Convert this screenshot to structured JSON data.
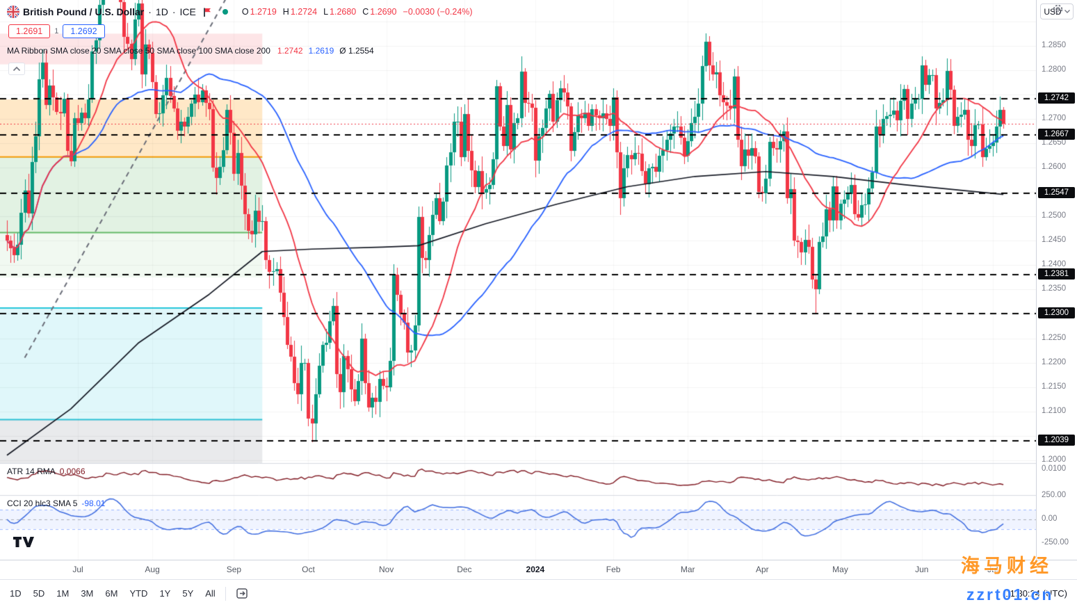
{
  "header": {
    "symbol": "British Pound / U.S. Dollar",
    "sep": "·",
    "interval": "1D",
    "exchange": "ICE",
    "status_color": "#089981",
    "ohlc": {
      "o_label": "O",
      "o": "1.2719",
      "h_label": "H",
      "h": "1.2724",
      "l_label": "L",
      "l": "1.2680",
      "c_label": "C",
      "c": "1.2690",
      "change": "−0.0030 (−0.24%)"
    },
    "bid": "1.2691",
    "spread": "1",
    "ask": "1.2692",
    "ma_ribbon": {
      "title": "MA Ribbon SMA close 20 SMA close 50 SMA close 100 SMA close 200",
      "sma20_value": "1.2742",
      "sma50_value": "1.2619",
      "avg_value": "Ø 1.2554"
    }
  },
  "price_scale": {
    "currency": "USD"
  },
  "indicators": {
    "atr": {
      "title": "ATR 14 RMA",
      "value": "0.0066",
      "seed": 0.0085,
      "scale_label": "0.0100",
      "scale_value": 0.01,
      "color": "#801922"
    },
    "cci": {
      "title": "CCI 20 hlc3 SMA 5",
      "value": "-98.01",
      "color": "#3d6be0",
      "band": [
        100,
        -100
      ],
      "scale_labels": [
        {
          "label": "250.00",
          "v": 250
        },
        {
          "label": "0.00",
          "v": 0
        },
        {
          "label": "-250.00",
          "v": -250
        }
      ]
    }
  },
  "toolbar": {
    "ranges": [
      "1D",
      "5D",
      "1M",
      "3M",
      "6M",
      "YTD",
      "1Y",
      "5Y",
      "All"
    ],
    "time": "11:30:24 (UTC)"
  },
  "watermark": {
    "line1": "海马财经",
    "line2": "zzrt01.cn"
  },
  "chart_data": {
    "type": "candlestick",
    "title": "British Pound / U.S. Dollar, 1D, ICE",
    "current_price": 1.269,
    "ohlc_current": [
      1.2719,
      1.2724,
      1.268,
      1.269
    ],
    "price_axis": {
      "top": 1.2944,
      "bottom": 1.1994,
      "grid_step": 0.005,
      "ticks": [
        {
          "label": "1.2850",
          "value": 1.285
        },
        {
          "label": "1.2800",
          "value": 1.28
        },
        {
          "label": "1.2700",
          "value": 1.27
        },
        {
          "label": "1.2650",
          "value": 1.265
        },
        {
          "label": "1.2600",
          "value": 1.26
        },
        {
          "label": "1.2500",
          "value": 1.25
        },
        {
          "label": "1.2450",
          "value": 1.245
        },
        {
          "label": "1.2400",
          "value": 1.24
        },
        {
          "label": "1.2350",
          "value": 1.235
        },
        {
          "label": "1.2250",
          "value": 1.225
        },
        {
          "label": "1.2200",
          "value": 1.22
        },
        {
          "label": "1.2150",
          "value": 1.215
        },
        {
          "label": "1.2100",
          "value": 1.21
        },
        {
          "label": "1.2000",
          "value": 1.2
        }
      ]
    },
    "levels": [
      {
        "label": "1.2742",
        "value": 1.2742
      },
      {
        "label": "1.2667",
        "value": 1.2667
      },
      {
        "label": "1.2547",
        "value": 1.2547
      },
      {
        "label": "1.2381",
        "value": 1.2381
      },
      {
        "label": "1.2300",
        "value": 1.23
      },
      {
        "label": "1.2039",
        "value": 1.2039
      }
    ],
    "colors": {
      "up": "#089981",
      "down": "#f23645",
      "sma20": "#f23645",
      "sma50": "#2962ff",
      "sma200": "#131722",
      "level": "#000000",
      "trend": "#6a6d78"
    },
    "first_open": 1.2462,
    "closes": [
      1.245,
      1.2435,
      1.2421,
      1.2442,
      1.2507,
      1.2553,
      1.2506,
      1.2611,
      1.2665,
      1.2782,
      1.2815,
      1.2729,
      1.2768,
      1.2744,
      1.2715,
      1.2711,
      1.2742,
      1.2635,
      1.2613,
      1.2701,
      1.2692,
      1.2713,
      1.2702,
      1.274,
      1.2838,
      1.2861,
      1.2934,
      1.2983,
      1.3133,
      1.3094,
      1.3075,
      1.3037,
      1.294,
      1.2869,
      1.2854,
      1.2823,
      1.2904,
      1.2937,
      1.2791,
      1.2852,
      1.2836,
      1.2775,
      1.271,
      1.2712,
      1.2749,
      1.2784,
      1.2747,
      1.2721,
      1.2676,
      1.2695,
      1.2684,
      1.2704,
      1.2731,
      1.275,
      1.2735,
      1.2759,
      1.2733,
      1.272,
      1.26,
      1.2579,
      1.2601,
      1.2636,
      1.2719,
      1.2671,
      1.2588,
      1.263,
      1.2563,
      1.2505,
      1.247,
      1.2463,
      1.2512,
      1.2489,
      1.2491,
      1.241,
      1.2386,
      1.2388,
      1.2392,
      1.2344,
      1.2294,
      1.2237,
      1.2212,
      1.2158,
      1.2135,
      1.22,
      1.22,
      1.2086,
      1.2076,
      1.2135,
      1.2193,
      1.2236,
      1.2241,
      1.2285,
      1.2317,
      1.2176,
      1.214,
      1.2213,
      1.2186,
      1.2145,
      1.2121,
      1.2163,
      1.2249,
      1.2158,
      1.2108,
      1.2128,
      1.212,
      1.2166,
      1.2153,
      1.215,
      1.2203,
      1.238,
      1.2339,
      1.2299,
      1.2282,
      1.2221,
      1.2225,
      1.2276,
      1.2499,
      1.2415,
      1.241,
      1.2462,
      1.2503,
      1.2538,
      1.249,
      1.2531,
      1.2604,
      1.2632,
      1.2694,
      1.2695,
      1.2622,
      1.271,
      1.2634,
      1.2594,
      1.256,
      1.2593,
      1.2549,
      1.2556,
      1.2565,
      1.2617,
      1.2767,
      1.2684,
      1.2645,
      1.2728,
      1.2637,
      1.2691,
      1.2701,
      1.2797,
      1.2733,
      1.2731,
      1.2723,
      1.2614,
      1.2664,
      1.2682,
      1.2721,
      1.2751,
      1.2695,
      1.2739,
      1.2763,
      1.2754,
      1.2726,
      1.2635,
      1.2673,
      1.2707,
      1.2702,
      1.2713,
      1.2686,
      1.272,
      1.2707,
      1.2702,
      1.2712,
      1.27,
      1.2686,
      1.2744,
      1.2632,
      1.2537,
      1.2599,
      1.2626,
      1.2617,
      1.263,
      1.2629,
      1.2593,
      1.2566,
      1.2599,
      1.2602,
      1.2592,
      1.2625,
      1.2636,
      1.2657,
      1.267,
      1.2684,
      1.2684,
      1.2662,
      1.2625,
      1.2655,
      1.2692,
      1.2704,
      1.2731,
      1.2808,
      1.2858,
      1.281,
      1.2792,
      1.2796,
      1.2748,
      1.2734,
      1.2727,
      1.2721,
      1.2787,
      1.2657,
      1.2603,
      1.2637,
      1.2624,
      1.264,
      1.2623,
      1.255,
      1.2548,
      1.2577,
      1.2653,
      1.264,
      1.2638,
      1.2654,
      1.2674,
      1.2538,
      1.2556,
      1.245,
      1.2447,
      1.2426,
      1.2452,
      1.2437,
      1.237,
      1.235,
      1.2448,
      1.2459,
      1.2514,
      1.2492,
      1.2562,
      1.2492,
      1.2526,
      1.2534,
      1.2546,
      1.2565,
      1.2505,
      1.2497,
      1.2523,
      1.2524,
      1.2558,
      1.259,
      1.2685,
      1.2667,
      1.27,
      1.2706,
      1.2709,
      1.2717,
      1.2697,
      1.2737,
      1.2761,
      1.27,
      1.2732,
      1.2742,
      1.2742,
      1.281,
      1.277,
      1.279,
      1.279,
      1.2722,
      1.2733,
      1.2739,
      1.2798,
      1.276,
      1.2686,
      1.2704,
      1.2708,
      1.2718,
      1.2658,
      1.2644,
      1.2687,
      1.2688,
      1.2622,
      1.2639,
      1.2645,
      1.2651,
      1.2685,
      1.2719,
      1.269
    ],
    "wick_overrides": {
      "86": [
        null,
        1.2037
      ],
      "228": [
        null,
        1.23
      ],
      "281": [
        1.2724,
        1.268
      ]
    },
    "sma200_points": [
      [
        0,
        1.201
      ],
      [
        18,
        1.2105
      ],
      [
        37,
        1.224
      ],
      [
        57,
        1.234
      ],
      [
        72,
        1.2428
      ],
      [
        86,
        1.2433
      ],
      [
        106,
        1.2437
      ],
      [
        116,
        1.244
      ],
      [
        135,
        1.2485
      ],
      [
        155,
        1.2525
      ],
      [
        175,
        1.2561
      ],
      [
        194,
        1.2582
      ],
      [
        214,
        1.2592
      ],
      [
        233,
        1.2582
      ],
      [
        253,
        1.2565
      ],
      [
        281,
        1.2545
      ]
    ],
    "zones_end_bar": 72,
    "zones": [
      {
        "top": 1.2875,
        "bottom": 1.2812,
        "fill": "rgba(242,54,69,0.13)"
      },
      {
        "top": 1.274,
        "bottom": 1.2622,
        "fill": "rgba(255,152,0,0.22)",
        "border_bottom": "#ff9800"
      },
      {
        "top": 1.2622,
        "bottom": 1.2467,
        "fill": "rgba(76,175,80,0.16)",
        "border_bottom": "#66bb6a"
      },
      {
        "top": 1.2467,
        "bottom": 1.2375,
        "fill": "rgba(76,175,80,0.08)"
      },
      {
        "top": 1.2312,
        "bottom": 1.2083,
        "fill": "rgba(0,188,212,0.12)",
        "border_top": "#26c6da",
        "border_bottom": "#26c6da"
      },
      {
        "top": 1.2083,
        "bottom": 1.1994,
        "fill": "rgba(120,123,134,0.16)"
      }
    ],
    "trendline": {
      "from": [
        5,
        1.221
      ],
      "to": [
        62,
        1.295
      ],
      "dash": [
        7,
        6
      ]
    },
    "time_axis": {
      "months": [
        {
          "label": "Jul",
          "bar": 20
        },
        {
          "label": "Aug",
          "bar": 41
        },
        {
          "label": "Sep",
          "bar": 64
        },
        {
          "label": "Oct",
          "bar": 85
        },
        {
          "label": "Nov",
          "bar": 107
        },
        {
          "label": "Dec",
          "bar": 129
        },
        {
          "label": "2024",
          "bar": 149,
          "strong": true
        },
        {
          "label": "Feb",
          "bar": 171
        },
        {
          "label": "Mar",
          "bar": 192
        },
        {
          "label": "Apr",
          "bar": 213
        },
        {
          "label": "May",
          "bar": 235
        },
        {
          "label": "Jun",
          "bar": 258
        },
        {
          "label": "Jul",
          "bar": 278
        }
      ]
    }
  }
}
